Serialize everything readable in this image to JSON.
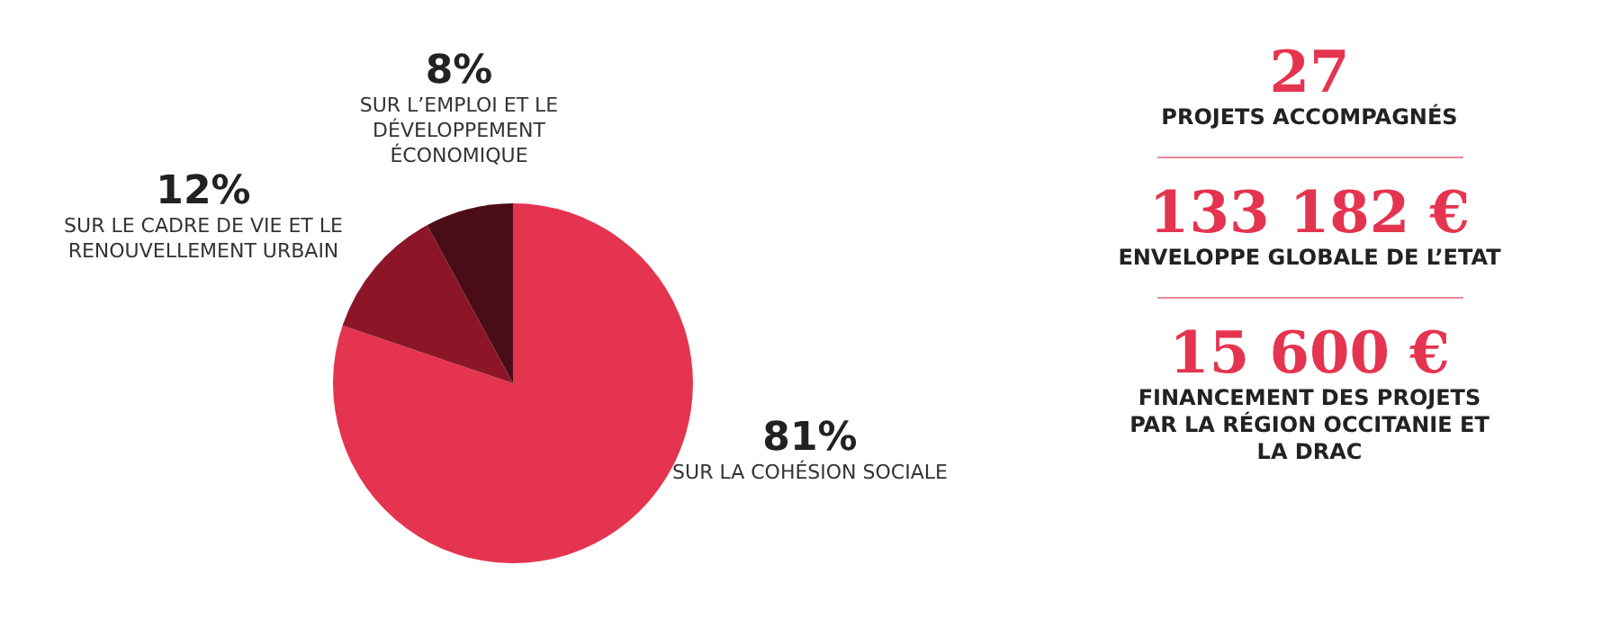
{
  "chart_data": [
    {
      "type": "pie",
      "categories": [
        "SUR LA COHÉSION SOCIALE",
        "SUR LE CADRE DE VIE ET LE RENOUVELLEMENT URBAIN",
        "SUR L’EMPLOI ET LE DÉVELOPPEMENT ÉCONOMIQUE"
      ],
      "values": [
        81,
        12,
        8
      ],
      "value_labels": [
        "81%",
        "12%",
        "8%"
      ],
      "colors": [
        "#e5344f",
        "#8c1628",
        "#4a0d18"
      ],
      "legend": false
    },
    {
      "type": "other",
      "annotations": [
        "27",
        "PROJETS ACCOMPAGNÉS",
        "133 182 €",
        "ENVELOPPE GLOBALE DE L’ETAT",
        "15 600 €",
        "FINANCEMENT DES PROJETS PAR LA RÉGION OCCITANIE ET LA DRAC"
      ]
    }
  ]
}
